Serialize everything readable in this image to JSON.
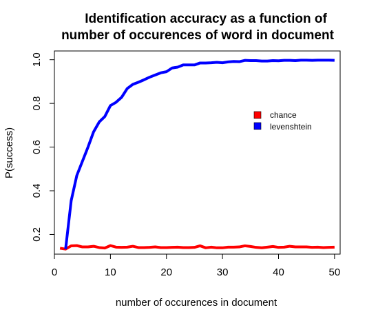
{
  "chart_data": {
    "type": "line",
    "title_lines": [
      "Identification accuracy as a function of",
      "number of occurences of word in document"
    ],
    "xlabel": "number of occurences in document",
    "ylabel": "P(success)",
    "xlim": [
      0,
      51
    ],
    "ylim": [
      0.11,
      1.04
    ],
    "xticks": [
      0,
      10,
      20,
      30,
      40,
      50
    ],
    "yticks": [
      0.2,
      0.4,
      0.6,
      0.8,
      1.0
    ],
    "ytick_labels": [
      "0.2",
      "0.4",
      "0.6",
      "0.8",
      "1.0"
    ],
    "grid": false,
    "legend_position": "right",
    "x": [
      1,
      2,
      3,
      4,
      5,
      6,
      7,
      8,
      9,
      10,
      11,
      12,
      13,
      14,
      15,
      16,
      17,
      18,
      19,
      20,
      21,
      22,
      23,
      24,
      25,
      26,
      27,
      28,
      29,
      30,
      31,
      32,
      33,
      34,
      35,
      36,
      37,
      38,
      39,
      40,
      41,
      42,
      43,
      44,
      45,
      46,
      47,
      48,
      49,
      50
    ],
    "series": [
      {
        "name": "chance",
        "color": "#ff0000",
        "values": [
          0.137,
          0.133,
          0.148,
          0.149,
          0.143,
          0.143,
          0.146,
          0.14,
          0.138,
          0.149,
          0.142,
          0.141,
          0.142,
          0.146,
          0.14,
          0.14,
          0.141,
          0.143,
          0.14,
          0.14,
          0.141,
          0.142,
          0.14,
          0.14,
          0.141,
          0.148,
          0.139,
          0.142,
          0.139,
          0.139,
          0.142,
          0.142,
          0.143,
          0.148,
          0.145,
          0.141,
          0.139,
          0.142,
          0.145,
          0.141,
          0.142,
          0.146,
          0.143,
          0.143,
          0.143,
          0.141,
          0.142,
          0.14,
          0.141,
          0.142
        ]
      },
      {
        "name": "levenshtein",
        "color": "#0000ff",
        "values": [
          null,
          0.133,
          0.355,
          0.47,
          0.535,
          0.6,
          0.67,
          0.715,
          0.74,
          0.79,
          0.805,
          0.828,
          0.868,
          0.887,
          0.897,
          0.908,
          0.92,
          0.93,
          0.94,
          0.945,
          0.962,
          0.966,
          0.976,
          0.976,
          0.976,
          0.985,
          0.985,
          0.986,
          0.988,
          0.986,
          0.99,
          0.992,
          0.991,
          0.997,
          0.996,
          0.996,
          0.994,
          0.994,
          0.996,
          0.995,
          0.997,
          0.997,
          0.996,
          0.998,
          0.998,
          0.997,
          0.998,
          0.998,
          0.998,
          0.997
        ]
      }
    ]
  }
}
